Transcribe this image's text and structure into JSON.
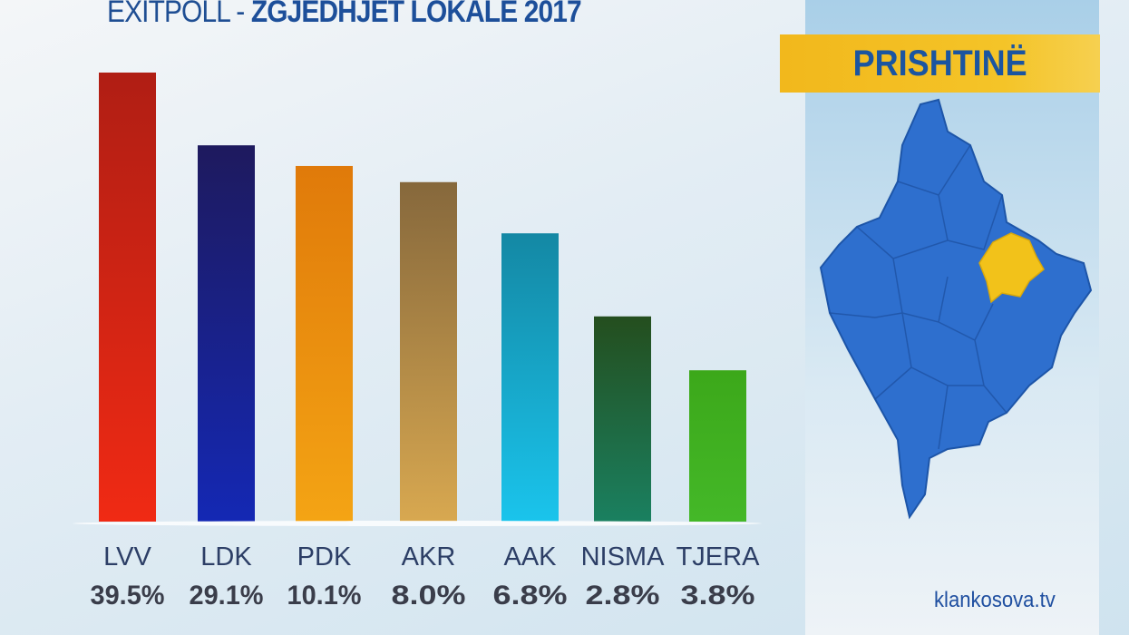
{
  "chart_data": {
    "type": "bar",
    "title_prefix": "EXITPOLL - ",
    "title_main": "ZGJEDHJET LOKALE 2017",
    "categories": [
      "LVV",
      "LDK",
      "PDK",
      "AKR",
      "AAK",
      "NISMA",
      "TJERA"
    ],
    "values": [
      39.5,
      29.1,
      10.1,
      8.0,
      6.8,
      2.8,
      3.8
    ],
    "value_labels": [
      "39.5%",
      "29.1%",
      "10.1%",
      "8.0%",
      "6.8%",
      "2.8%",
      "3.8%"
    ],
    "displayed_bar_levels": [
      1.0,
      0.838,
      0.792,
      0.756,
      0.642,
      0.457,
      0.337
    ],
    "colors": [
      [
        "#b01e14",
        "#f02a14"
      ],
      [
        "#1e1a5e",
        "#1428b4"
      ],
      [
        "#e07a0a",
        "#f4a414"
      ],
      [
        "#86683c",
        "#d8a850"
      ],
      [
        "#1488a4",
        "#1ac4ec"
      ],
      [
        "#244e1e",
        "#1a8060"
      ],
      [
        "#3ca81a",
        "#44b828"
      ]
    ],
    "xlabel": "",
    "ylabel": "",
    "grid": false,
    "legend": "none"
  },
  "panel": {
    "region": "PRISHTINË",
    "region_color": "#f2c21a",
    "map_color": "#2e6fce",
    "website": "klankosova.tv"
  }
}
